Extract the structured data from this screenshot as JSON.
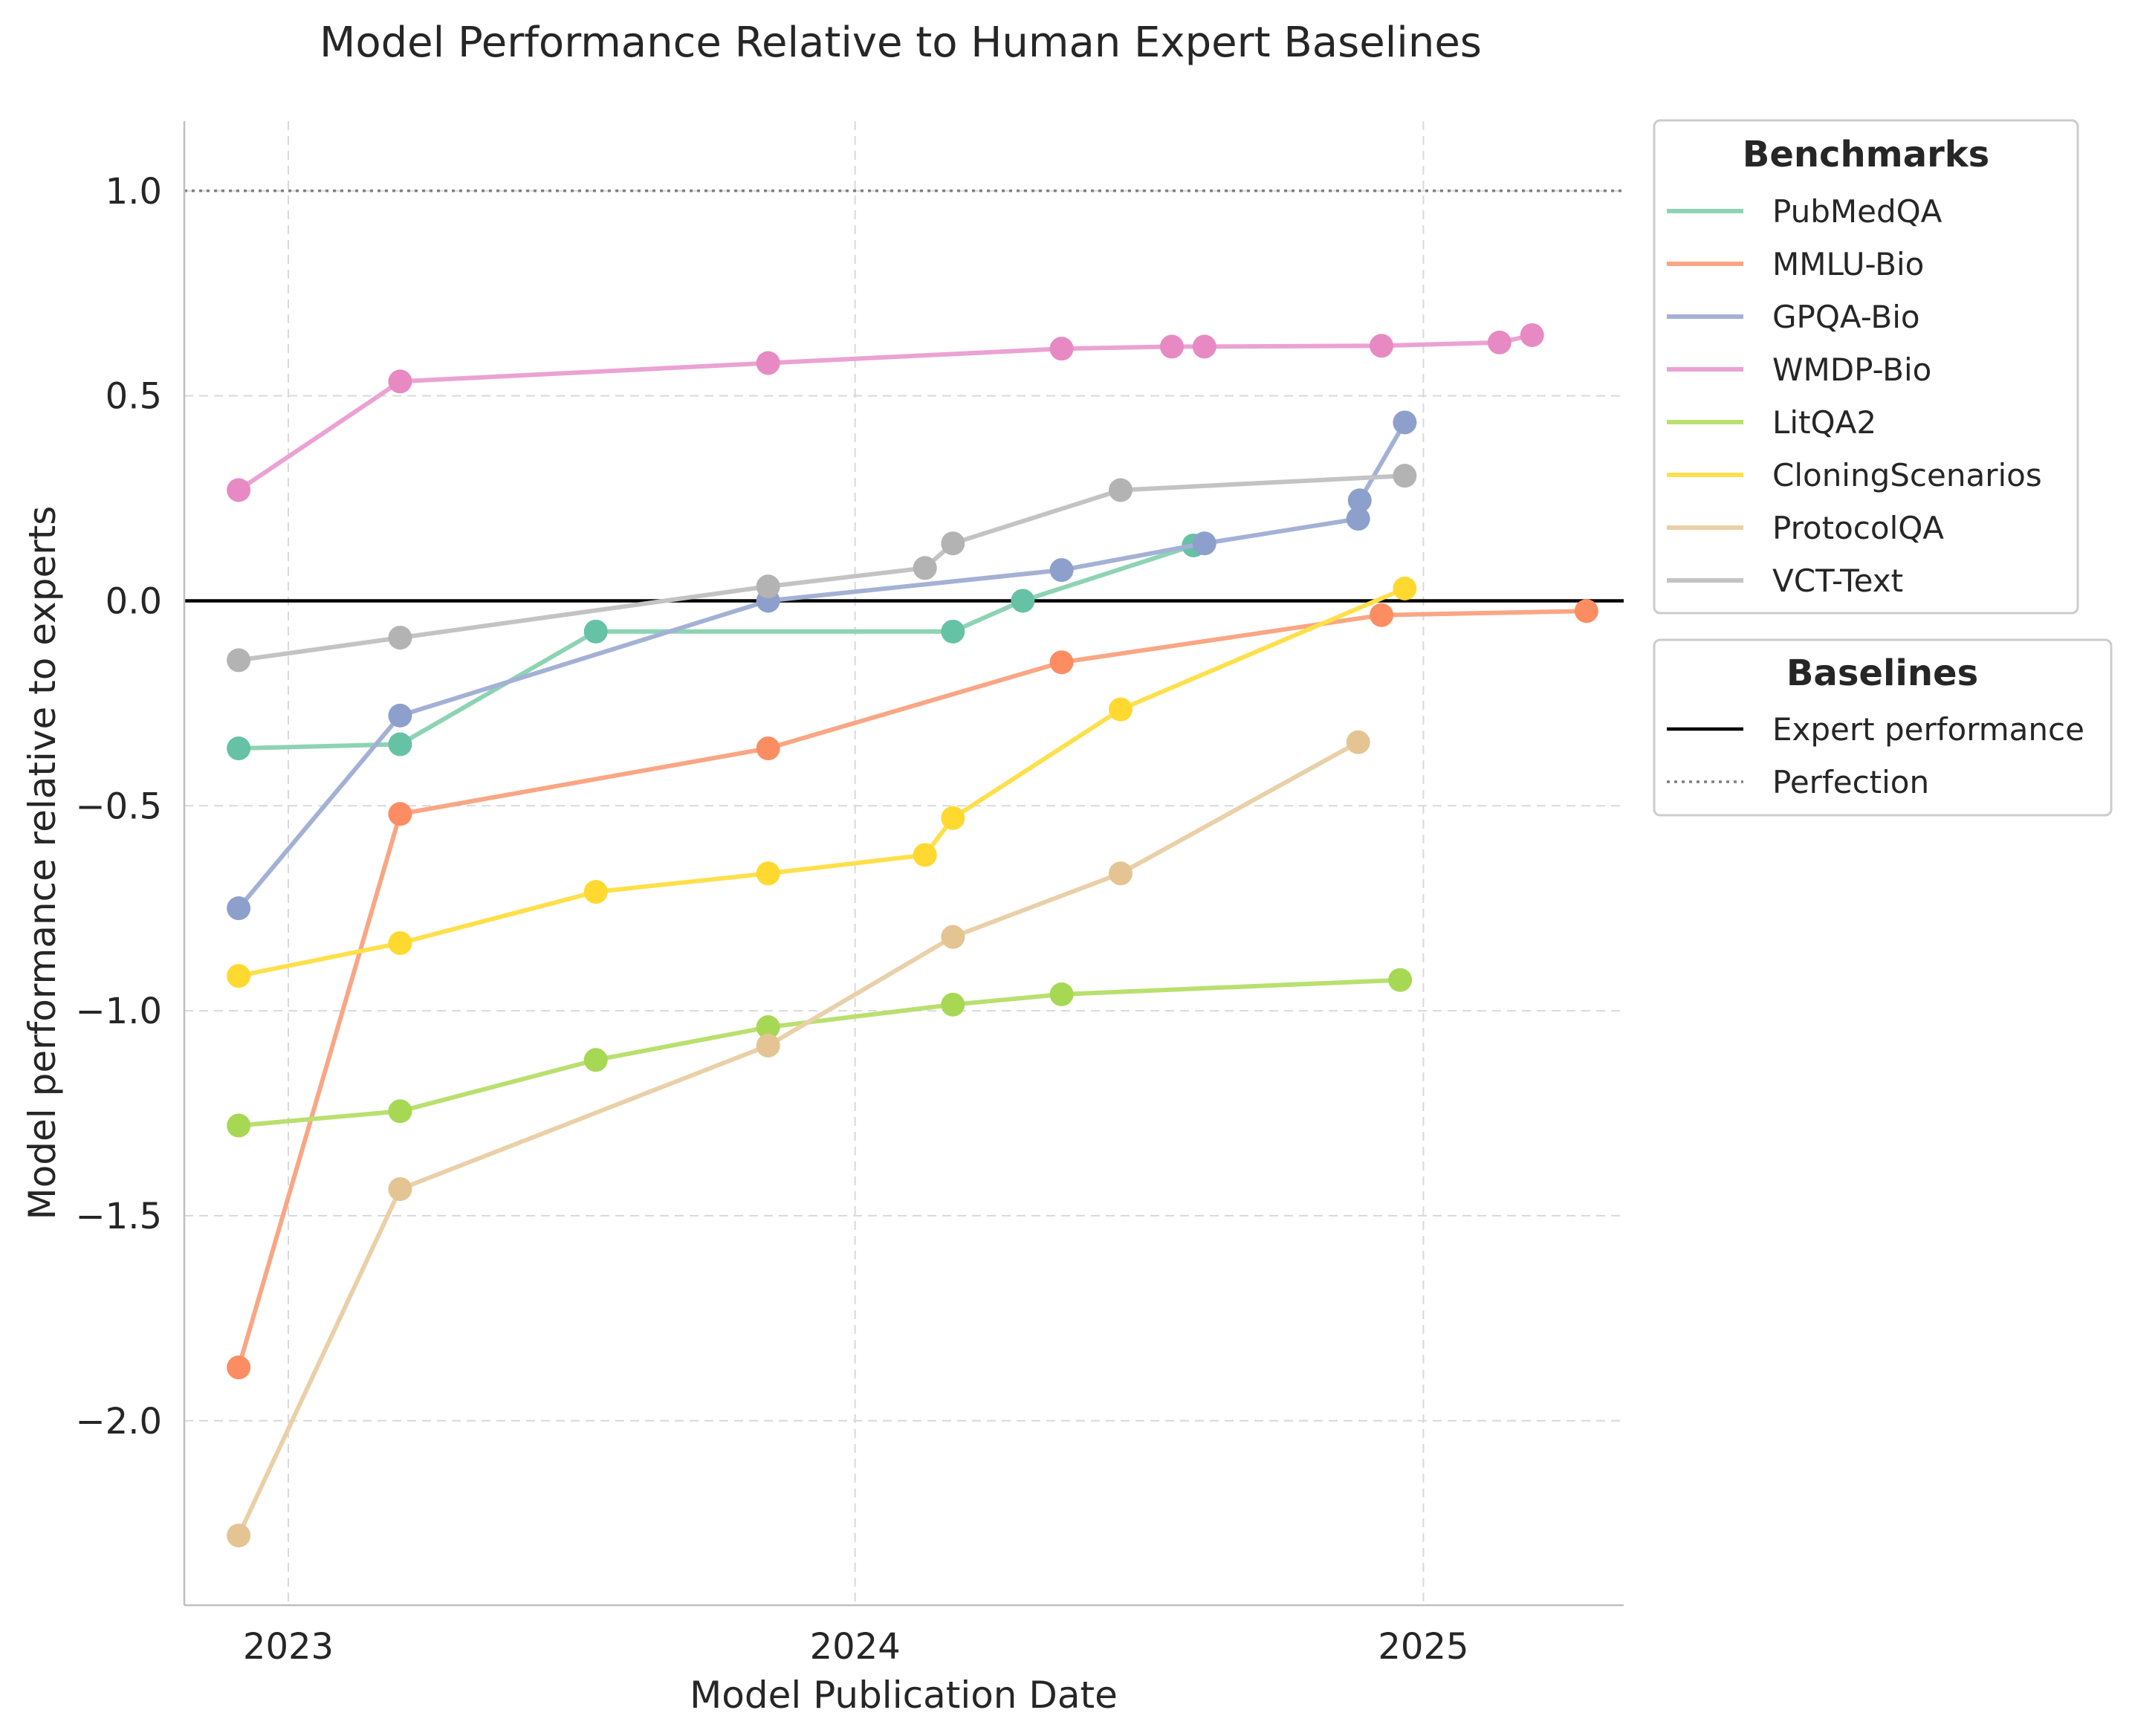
{
  "chart_data": {
    "type": "line",
    "title": "Model Performance Relative to Human Expert Baselines",
    "xlabel": "Model Publication Date",
    "ylabel": "Model performance relative to experts",
    "xlim": [
      "2022-10-26",
      "2025-05-10"
    ],
    "ylim": [
      -2.45,
      1.17
    ],
    "x_ticks": [
      {
        "date": "2023-01-01",
        "label": "2023"
      },
      {
        "date": "2024-01-01",
        "label": "2024"
      },
      {
        "date": "2025-01-01",
        "label": "2025"
      }
    ],
    "y_ticks": [
      {
        "value": 1.0,
        "label": "1.0"
      },
      {
        "value": 0.5,
        "label": "0.5"
      },
      {
        "value": 0.0,
        "label": "0.0"
      },
      {
        "value": -0.5,
        "label": "−0.5"
      },
      {
        "value": -1.0,
        "label": "−1.0"
      },
      {
        "value": -1.5,
        "label": "−1.5"
      },
      {
        "value": -2.0,
        "label": "−2.0"
      }
    ],
    "grid": true,
    "series": [
      {
        "name": "PubMedQA",
        "line_color": "#8dd3b4",
        "marker_color": "#66c2a5",
        "x": [
          "2022-11-30",
          "2023-03-14",
          "2023-07-18",
          "2024-03-04",
          "2024-04-18",
          "2024-08-06"
        ],
        "y": [
          -0.36,
          -0.35,
          -0.075,
          -0.075,
          0.0,
          0.135
        ]
      },
      {
        "name": "MMLU-Bio",
        "line_color": "#f9a684",
        "marker_color": "#fc8d62",
        "x": [
          "2022-11-30",
          "2023-03-14",
          "2023-11-06",
          "2024-05-13",
          "2024-12-05",
          "2025-04-16"
        ],
        "y": [
          -1.87,
          -0.52,
          -0.36,
          -0.15,
          -0.035,
          -0.025
        ]
      },
      {
        "name": "GPQA-Bio",
        "line_color": "#a3b1d5",
        "marker_color": "#8da0cb",
        "x": [
          "2022-11-30",
          "2023-03-14",
          "2023-11-06",
          "2024-05-13",
          "2024-08-13",
          "2024-11-20",
          "2024-11-21",
          "2024-12-20"
        ],
        "y": [
          -0.75,
          -0.28,
          0.0,
          0.075,
          0.14,
          0.2,
          0.245,
          0.435
        ]
      },
      {
        "name": "WMDP-Bio",
        "line_color": "#eba2d3",
        "marker_color": "#e78ac3",
        "x": [
          "2022-11-30",
          "2023-03-14",
          "2023-11-06",
          "2024-05-13",
          "2024-07-23",
          "2024-08-13",
          "2024-12-05",
          "2025-02-19",
          "2025-03-12"
        ],
        "y": [
          0.27,
          0.535,
          0.58,
          0.615,
          0.62,
          0.62,
          0.622,
          0.63,
          0.648
        ]
      },
      {
        "name": "LitQA2",
        "line_color": "#b9e06f",
        "marker_color": "#a6d854",
        "x": [
          "2022-11-30",
          "2023-03-14",
          "2023-07-18",
          "2023-11-06",
          "2024-03-04",
          "2024-05-13",
          "2024-12-17"
        ],
        "y": [
          -1.28,
          -1.245,
          -1.12,
          -1.04,
          -0.985,
          -0.96,
          -0.925
        ]
      },
      {
        "name": "CloningScenarios",
        "line_color": "#ffe04a",
        "marker_color": "#ffd92f",
        "x": [
          "2022-11-30",
          "2023-03-14",
          "2023-07-18",
          "2023-11-06",
          "2024-02-15",
          "2024-03-04",
          "2024-06-20",
          "2024-12-20"
        ],
        "y": [
          -0.915,
          -0.835,
          -0.71,
          -0.665,
          -0.62,
          -0.53,
          -0.265,
          0.03
        ]
      },
      {
        "name": "ProtocolQA",
        "line_color": "#ead0a8",
        "marker_color": "#e5c494",
        "x": [
          "2022-11-30",
          "2023-03-14",
          "2023-11-06",
          "2024-03-04",
          "2024-06-20",
          "2024-11-20"
        ],
        "y": [
          -2.28,
          -1.435,
          -1.085,
          -0.82,
          -0.665,
          -0.345
        ]
      },
      {
        "name": "VCT-Text",
        "line_color": "#c3c3c3",
        "marker_color": "#b3b3b3",
        "x": [
          "2022-11-30",
          "2023-03-14",
          "2023-11-06",
          "2024-02-15",
          "2024-03-04",
          "2024-06-20",
          "2024-12-20"
        ],
        "y": [
          -0.145,
          -0.09,
          0.035,
          0.08,
          0.14,
          0.27,
          0.305
        ]
      }
    ],
    "baselines": [
      {
        "name": "Expert performance",
        "y": 0.0,
        "style": "solid",
        "color": "#000000"
      },
      {
        "name": "Perfection",
        "y": 1.0,
        "style": "dotted",
        "color": "#7f7f7f"
      }
    ],
    "legends": [
      {
        "title": "Benchmarks",
        "placement": "outside-right-top"
      },
      {
        "title": "Baselines",
        "placement": "outside-right"
      }
    ]
  }
}
